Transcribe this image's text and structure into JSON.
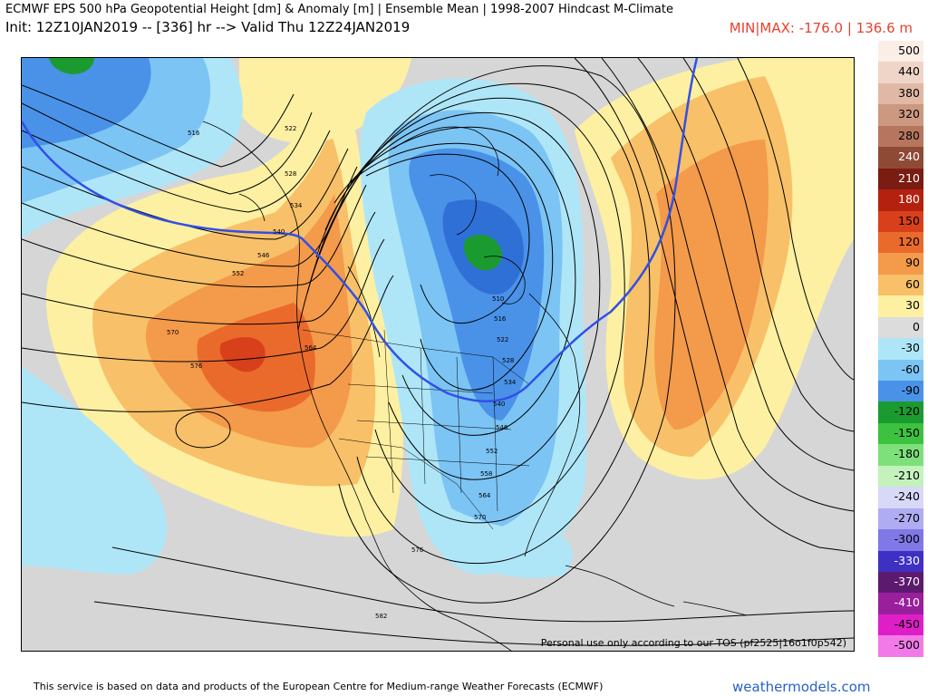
{
  "header": {
    "title": "ECMWF EPS 500 hPa Geopotential Height [dm] & Anomaly [m] | Ensemble Mean | 1998-2007 Hindcast M-Climate",
    "init": "Init: 12Z10JAN2019 -- [336] hr --> Valid Thu 12Z24JAN2019",
    "minmax": "MIN|MAX: -176.0 | 136.6 m"
  },
  "map": {
    "tos_text": "Personal use only according to our TOS (pf2525|16o1f0p542)",
    "contour_labels": [
      "516",
      "522",
      "528",
      "534",
      "540",
      "546",
      "552",
      "570",
      "576",
      "564",
      "510",
      "516",
      "522",
      "528",
      "534",
      "540",
      "546",
      "552",
      "558",
      "564",
      "570",
      "576",
      "582"
    ]
  },
  "colorbar": {
    "levels": [
      {
        "label": "500",
        "color": "#fbeee6"
      },
      {
        "label": "440",
        "color": "#efd5c8"
      },
      {
        "label": "380",
        "color": "#e0b8a5"
      },
      {
        "label": "320",
        "color": "#cc9880"
      },
      {
        "label": "280",
        "color": "#b6765e"
      },
      {
        "label": "240",
        "color": "#8f4a36"
      },
      {
        "label": "210",
        "color": "#7a1c12"
      },
      {
        "label": "180",
        "color": "#b5210f"
      },
      {
        "label": "150",
        "color": "#d8401c"
      },
      {
        "label": "120",
        "color": "#ea6a2c"
      },
      {
        "label": "90",
        "color": "#f39a4b"
      },
      {
        "label": "60",
        "color": "#f8c068"
      },
      {
        "label": "30",
        "color": "#fdf0a2"
      },
      {
        "label": "0",
        "color": "#dcdcdc"
      },
      {
        "label": "-30",
        "color": "#aee6f8"
      },
      {
        "label": "-60",
        "color": "#7cc4f4"
      },
      {
        "label": "-90",
        "color": "#4a92e8"
      },
      {
        "label": "-120",
        "color": "#1b9b2f"
      },
      {
        "label": "-150",
        "color": "#3dc23f"
      },
      {
        "label": "-180",
        "color": "#7ee07a"
      },
      {
        "label": "-210",
        "color": "#c4f2bd"
      },
      {
        "label": "-240",
        "color": "#d8d8f8"
      },
      {
        "label": "-270",
        "color": "#b0acf2"
      },
      {
        "label": "-300",
        "color": "#7f78e6"
      },
      {
        "label": "-330",
        "color": "#3f30c4"
      },
      {
        "label": "-370",
        "color": "#5c1a6e"
      },
      {
        "label": "-410",
        "color": "#9a1f9c"
      },
      {
        "label": "-450",
        "color": "#e01ec8"
      },
      {
        "label": "-500",
        "color": "#f27ae8"
      }
    ]
  },
  "footer": {
    "attribution": "This service is based on data and products of the European Centre for Medium-range Weather Forecasts (ECMWF)",
    "site": "weathermodels.com"
  }
}
